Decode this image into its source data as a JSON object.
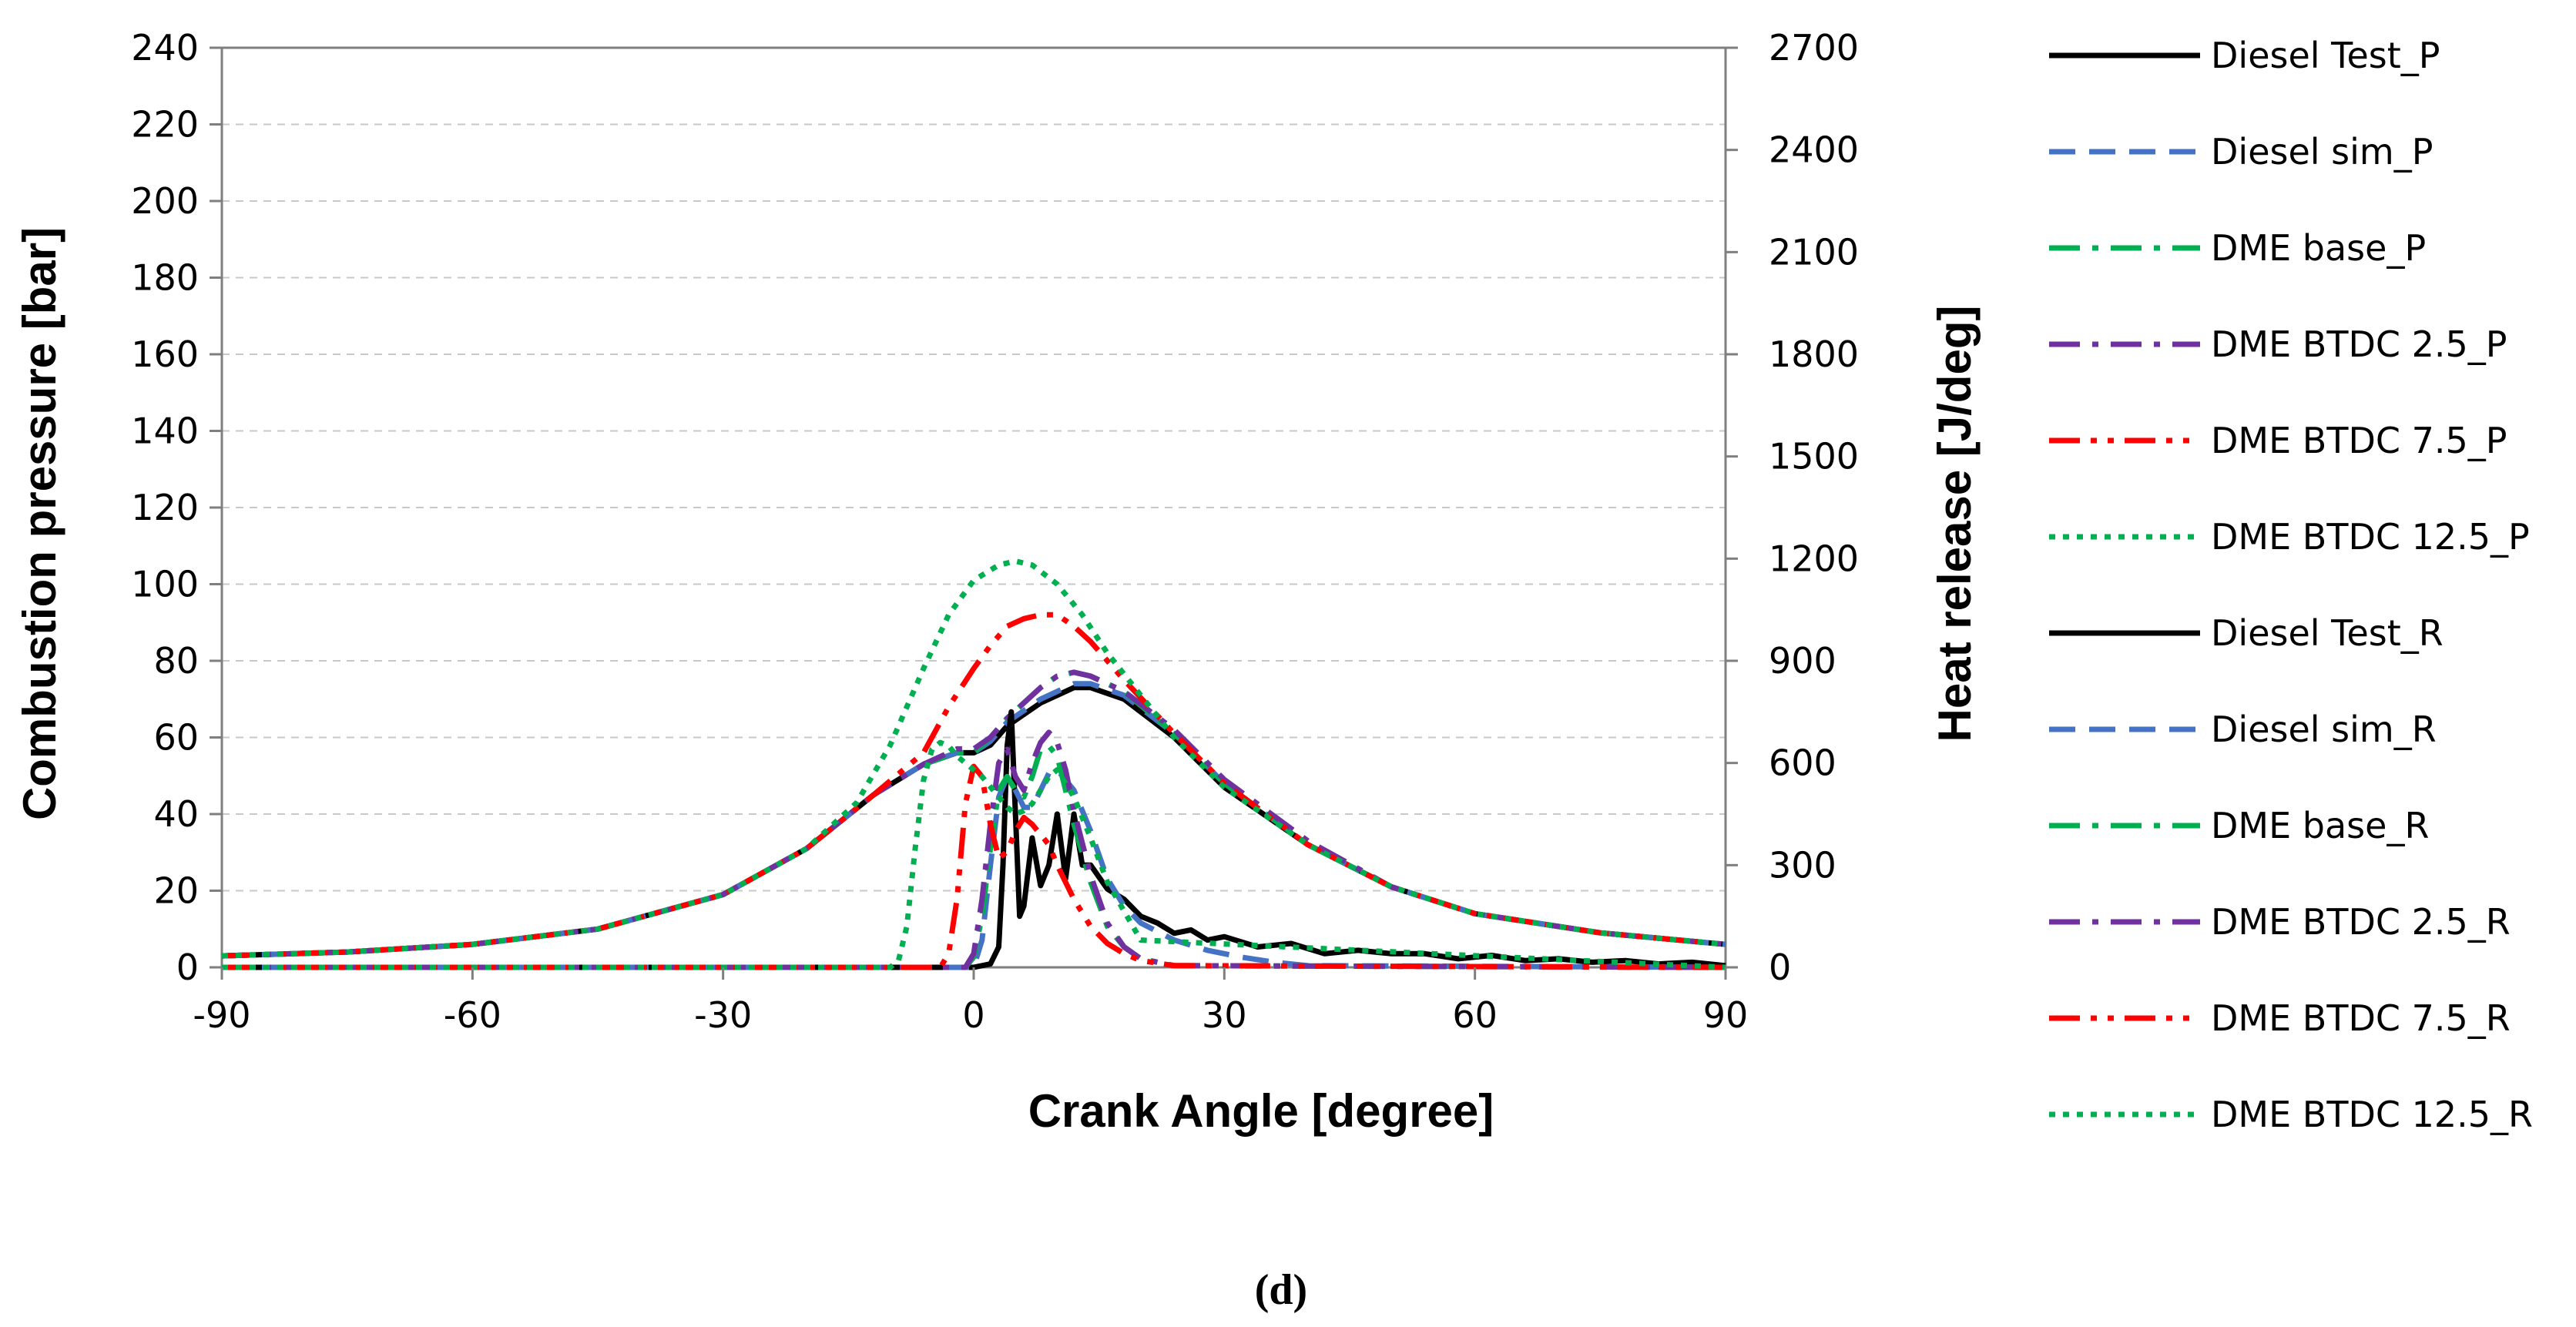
{
  "chart_data": {
    "type": "line",
    "caption": "(d)",
    "xlabel": "Crank Angle [degree]",
    "ylabel": "Combustion pressure [bar]",
    "y2label": "Heat release [J/deg]",
    "xlim": [
      -90,
      90
    ],
    "ylim": [
      0,
      240
    ],
    "y2lim": [
      0,
      2700
    ],
    "xticks": [
      -90,
      -60,
      -30,
      0,
      30,
      60,
      90
    ],
    "yticks": [
      0,
      20,
      40,
      60,
      80,
      100,
      120,
      140,
      160,
      180,
      200,
      220,
      240
    ],
    "y2ticks": [
      0,
      300,
      600,
      900,
      1200,
      1500,
      1800,
      2100,
      2400,
      2700
    ],
    "grid": "horizontal dashed",
    "legend_position": "right",
    "series": [
      {
        "name": "Diesel Test_P",
        "axis": "left",
        "color": "#000000",
        "dash": "solid",
        "x": [
          -90,
          -75,
          -60,
          -45,
          -30,
          -20,
          -12,
          -6,
          -2,
          0,
          2,
          4,
          6,
          8,
          10,
          12,
          14,
          18,
          24,
          30,
          40,
          50,
          60,
          75,
          90
        ],
        "y": [
          3,
          4,
          6,
          10,
          19,
          31,
          45,
          53,
          56,
          56,
          58,
          63,
          66,
          69,
          71,
          73,
          73,
          70,
          60,
          47,
          32,
          21,
          14,
          9,
          6
        ]
      },
      {
        "name": "Diesel sim_P",
        "axis": "left",
        "color": "#4472C4",
        "dash": "dash",
        "x": [
          -90,
          -75,
          -60,
          -45,
          -30,
          -20,
          -12,
          -6,
          -2,
          0,
          2,
          4,
          6,
          8,
          10,
          12,
          14,
          18,
          24,
          30,
          40,
          50,
          60,
          75,
          90
        ],
        "y": [
          3,
          4,
          6,
          10,
          19,
          31,
          45,
          53,
          56,
          56,
          59,
          64,
          67,
          70,
          72,
          74,
          74,
          71,
          61,
          48,
          32,
          21,
          14,
          9,
          6
        ]
      },
      {
        "name": "DME base_P",
        "axis": "left",
        "color": "#00B050",
        "dash": "dashdot",
        "x": [
          -90,
          -75,
          -60,
          -45,
          -30,
          -20,
          -12,
          -6,
          -2,
          0,
          2,
          4,
          6,
          8,
          10,
          12,
          14,
          18,
          24,
          30,
          40,
          50,
          60,
          75,
          90
        ],
        "y": [
          3,
          4,
          6,
          10,
          19,
          31,
          45,
          53,
          56,
          56,
          60,
          65,
          69,
          73,
          76,
          77,
          76,
          72,
          61,
          48,
          32,
          21,
          14,
          9,
          6
        ]
      },
      {
        "name": "DME BTDC 2.5_P",
        "axis": "left",
        "color": "#7030A0",
        "dash": "dashdot",
        "x": [
          -90,
          -75,
          -60,
          -45,
          -30,
          -20,
          -12,
          -6,
          -2,
          0,
          2,
          4,
          6,
          8,
          10,
          12,
          14,
          18,
          24,
          30,
          40,
          50,
          60,
          75,
          90
        ],
        "y": [
          3,
          4,
          6,
          10,
          19,
          31,
          45,
          53,
          57,
          57,
          60,
          65,
          69,
          73,
          76,
          77,
          76,
          72,
          62,
          49,
          33,
          21,
          14,
          9,
          6
        ]
      },
      {
        "name": "DME BTDC 7.5_P",
        "axis": "left",
        "color": "#FF0000",
        "dash": "dashdotdot",
        "x": [
          -90,
          -75,
          -60,
          -45,
          -30,
          -20,
          -12,
          -6,
          -3,
          0,
          2,
          4,
          6,
          8,
          10,
          12,
          14,
          18,
          24,
          30,
          40,
          50,
          60,
          75,
          90
        ],
        "y": [
          3,
          4,
          6,
          10,
          19,
          31,
          45,
          56,
          68,
          78,
          84,
          89,
          91,
          92,
          92,
          89,
          85,
          75,
          61,
          48,
          32,
          21,
          14,
          9,
          6
        ]
      },
      {
        "name": "DME BTDC 12.5_P",
        "axis": "left",
        "color": "#00B050",
        "dash": "dot",
        "x": [
          -90,
          -75,
          -60,
          -45,
          -30,
          -20,
          -14,
          -10,
          -6,
          -3,
          0,
          3,
          5,
          7,
          10,
          13,
          16,
          20,
          24,
          30,
          40,
          50,
          60,
          75,
          90
        ],
        "y": [
          3,
          4,
          6,
          10,
          19,
          31,
          43,
          58,
          78,
          92,
          101,
          105,
          106,
          105,
          100,
          92,
          82,
          71,
          60,
          47,
          32,
          21,
          14,
          9,
          6
        ]
      },
      {
        "name": "Diesel Test_R",
        "axis": "right",
        "color": "#000000",
        "dash": "solid",
        "x": [
          -90,
          0,
          2,
          3,
          3.5,
          4,
          4.5,
          5,
          5.5,
          6,
          7,
          8,
          9,
          10,
          11,
          12,
          13,
          14,
          16,
          18,
          20,
          22,
          24,
          26,
          28,
          30,
          34,
          38,
          42,
          46,
          50,
          54,
          58,
          62,
          66,
          70,
          74,
          78,
          82,
          86,
          90
        ],
        "y": [
          0,
          0,
          10,
          60,
          300,
          650,
          750,
          450,
          150,
          180,
          380,
          240,
          300,
          450,
          260,
          450,
          300,
          300,
          230,
          200,
          150,
          130,
          100,
          110,
          80,
          90,
          60,
          70,
          40,
          50,
          40,
          40,
          25,
          35,
          20,
          25,
          15,
          20,
          10,
          15,
          5
        ]
      },
      {
        "name": "Diesel sim_R",
        "axis": "right",
        "color": "#4472C4",
        "dash": "dash",
        "x": [
          -90,
          0,
          1,
          2,
          3,
          4,
          5,
          6,
          7,
          8,
          9,
          10,
          12,
          14,
          16,
          18,
          20,
          24,
          28,
          32,
          36,
          40,
          90
        ],
        "y": [
          0,
          0,
          80,
          300,
          500,
          560,
          520,
          470,
          470,
          520,
          570,
          580,
          520,
          400,
          260,
          180,
          130,
          80,
          50,
          30,
          15,
          5,
          0
        ]
      },
      {
        "name": "DME base_R",
        "axis": "right",
        "color": "#00B050",
        "dash": "dashdot",
        "x": [
          -90,
          -1,
          0,
          1,
          2,
          3,
          4,
          5,
          6,
          7,
          8,
          9,
          10,
          11,
          12,
          14,
          16,
          18,
          20,
          24,
          90
        ],
        "y": [
          0,
          0,
          30,
          150,
          350,
          520,
          560,
          520,
          500,
          560,
          640,
          650,
          620,
          520,
          420,
          250,
          120,
          60,
          25,
          5,
          0
        ]
      },
      {
        "name": "DME BTDC 2.5_R",
        "axis": "right",
        "color": "#7030A0",
        "dash": "dashdot",
        "x": [
          -90,
          -1,
          0,
          1,
          2,
          3,
          4,
          5,
          6,
          7,
          8,
          9,
          10,
          11,
          12,
          14,
          16,
          18,
          20,
          24,
          90
        ],
        "y": [
          0,
          0,
          40,
          200,
          420,
          600,
          640,
          560,
          520,
          600,
          660,
          690,
          660,
          580,
          460,
          270,
          130,
          60,
          25,
          5,
          0
        ]
      },
      {
        "name": "DME BTDC 7.5_R",
        "axis": "right",
        "color": "#FF0000",
        "dash": "dashdotdot",
        "x": [
          -90,
          -4,
          -3,
          -2,
          -1,
          0,
          1,
          2,
          3,
          4,
          5,
          6,
          7,
          8,
          9,
          10,
          12,
          14,
          16,
          18,
          20,
          24,
          90
        ],
        "y": [
          0,
          0,
          40,
          200,
          480,
          590,
          560,
          420,
          320,
          340,
          400,
          440,
          420,
          390,
          360,
          300,
          200,
          120,
          70,
          40,
          20,
          5,
          0
        ]
      },
      {
        "name": "DME BTDC 12.5_R",
        "axis": "right",
        "color": "#00B050",
        "dash": "dot",
        "x": [
          -90,
          -10,
          -9,
          -8,
          -7,
          -6,
          -5,
          -4,
          -3,
          -2,
          -1,
          0,
          1,
          2,
          3,
          4,
          5,
          6,
          7,
          8,
          9,
          10,
          12,
          14,
          16,
          20,
          90
        ],
        "y": [
          0,
          0,
          20,
          120,
          350,
          550,
          640,
          660,
          650,
          620,
          600,
          580,
          560,
          530,
          500,
          470,
          450,
          460,
          480,
          520,
          560,
          580,
          500,
          380,
          250,
          80,
          0
        ]
      }
    ]
  }
}
